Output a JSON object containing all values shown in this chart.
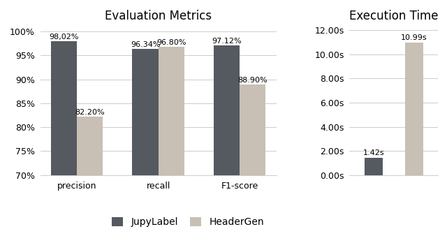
{
  "eval_categories": [
    "precision",
    "recall",
    "F1-score"
  ],
  "jupylabel_eval": [
    98.02,
    96.34,
    97.12
  ],
  "headergen_eval": [
    82.2,
    96.8,
    88.9
  ],
  "jupylabel_time": 1.42,
  "headergen_time": 10.99,
  "color_dark": "#555960",
  "color_light": "#c8c0b4",
  "eval_title": "Evaluation Metrics",
  "time_title": "Execution Time",
  "eval_ylim": [
    70,
    101.5
  ],
  "eval_yticks": [
    70,
    75,
    80,
    85,
    90,
    95,
    100
  ],
  "time_ylim": [
    0,
    12.5
  ],
  "time_yticks": [
    0,
    2,
    4,
    6,
    8,
    10,
    12
  ],
  "legend_labels": [
    "JupyLabel",
    "HeaderGen"
  ],
  "bar_width": 0.32,
  "annotation_fontsize": 8.0,
  "title_fontsize": 12,
  "tick_fontsize": 9,
  "legend_fontsize": 10,
  "eval_labels_jl": [
    "98,02%",
    "96.34%",
    "97.12%"
  ],
  "eval_labels_hg": [
    "82.20%",
    "96.80%",
    "88.90%"
  ]
}
